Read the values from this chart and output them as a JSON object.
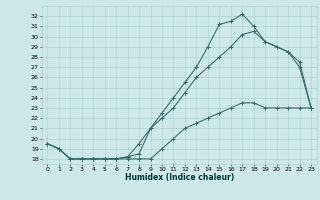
{
  "xlabel": "Humidex (Indice chaleur)",
  "bg_color": "#cce8e8",
  "grid_color": "#aacccc",
  "line_color": "#336666",
  "xlim": [
    -0.5,
    23.5
  ],
  "ylim": [
    17.5,
    33.0
  ],
  "xticks": [
    0,
    1,
    2,
    3,
    4,
    5,
    6,
    7,
    8,
    9,
    10,
    11,
    12,
    13,
    14,
    15,
    16,
    17,
    18,
    19,
    20,
    21,
    22,
    23
  ],
  "yticks": [
    18,
    19,
    20,
    21,
    22,
    23,
    24,
    25,
    26,
    27,
    28,
    29,
    30,
    31,
    32
  ],
  "curve1_x": [
    0,
    1,
    2,
    3,
    4,
    5,
    6,
    7,
    8,
    9,
    10,
    11,
    12,
    13,
    14,
    15,
    16,
    17,
    18,
    19,
    20,
    21,
    22,
    23
  ],
  "curve1_y": [
    19.5,
    19.0,
    18.0,
    18.0,
    18.0,
    18.0,
    18.0,
    18.2,
    18.5,
    21.0,
    22.5,
    24.0,
    25.5,
    27.0,
    29.0,
    31.2,
    31.5,
    32.2,
    31.0,
    29.5,
    29.0,
    28.5,
    27.5,
    23.0
  ],
  "curve2_x": [
    0,
    1,
    2,
    3,
    4,
    5,
    6,
    7,
    8,
    9,
    10,
    11,
    12,
    13,
    14,
    15,
    16,
    17,
    18,
    19,
    20,
    21,
    22,
    23
  ],
  "curve2_y": [
    19.5,
    19.0,
    18.0,
    18.0,
    18.0,
    18.0,
    18.0,
    18.2,
    19.5,
    21.0,
    22.0,
    23.0,
    24.5,
    26.0,
    27.0,
    28.0,
    29.0,
    30.2,
    30.5,
    29.5,
    29.0,
    28.5,
    27.0,
    23.0
  ],
  "curve3_x": [
    0,
    1,
    2,
    3,
    4,
    5,
    6,
    7,
    8,
    9,
    10,
    11,
    12,
    13,
    14,
    15,
    16,
    17,
    18,
    19,
    20,
    21,
    22,
    23
  ],
  "curve3_y": [
    19.5,
    19.0,
    18.0,
    18.0,
    18.0,
    18.0,
    18.0,
    18.0,
    18.0,
    18.0,
    19.0,
    20.0,
    21.0,
    21.5,
    22.0,
    22.5,
    23.0,
    23.5,
    23.5,
    23.0,
    23.0,
    23.0,
    23.0,
    23.0
  ]
}
